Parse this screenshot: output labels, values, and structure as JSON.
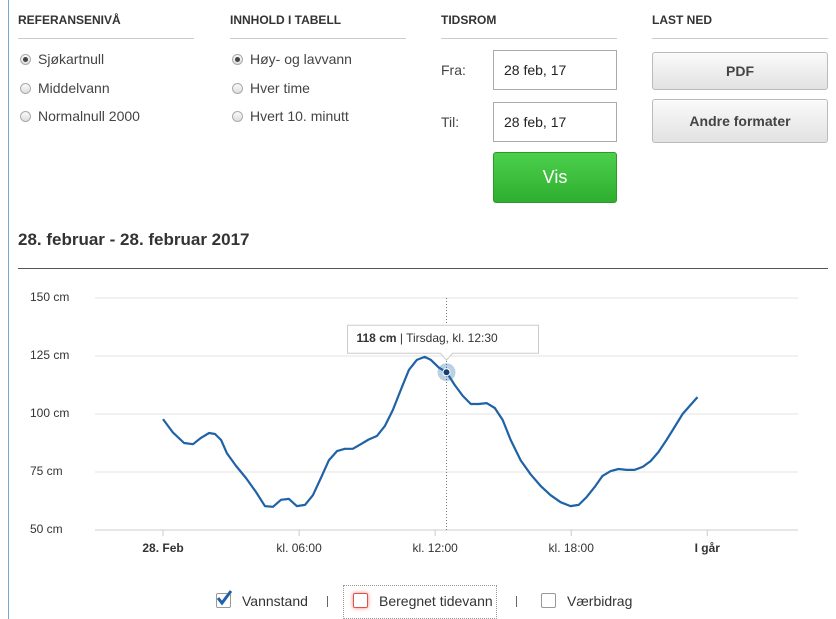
{
  "form": {
    "reference": {
      "title": "REFERANSENIVÅ",
      "options": [
        {
          "label": "Sjøkartnull",
          "selected": true
        },
        {
          "label": "Middelvann",
          "selected": false
        },
        {
          "label": "Normalnull 2000",
          "selected": false
        }
      ]
    },
    "content": {
      "title": "INNHOLD I TABELL",
      "options": [
        {
          "label": "Høy- og lavvann",
          "selected": true
        },
        {
          "label": "Hver time",
          "selected": false
        },
        {
          "label": "Hvert 10. minutt",
          "selected": false
        }
      ]
    },
    "period": {
      "title": "TIDSROM",
      "from_label": "Fra:",
      "from_value": "28 feb, 17",
      "to_label": "Til:",
      "to_value": "28 feb, 17",
      "submit": "Vis"
    },
    "download": {
      "title": "LAST NED",
      "buttons": [
        "PDF",
        "Andre formater"
      ]
    }
  },
  "heading": "28. februar - 28. februar 2017",
  "chart_data": {
    "type": "line",
    "x": [
      0,
      0.44,
      0.93,
      1.32,
      1.67,
      2.03,
      2.29,
      2.56,
      2.82,
      3.22,
      3.66,
      4.1,
      4.49,
      4.85,
      5.2,
      5.55,
      5.9,
      6.26,
      6.61,
      6.96,
      7.31,
      7.67,
      8.02,
      8.37,
      8.72,
      9.07,
      9.43,
      9.78,
      10.13,
      10.48,
      10.84,
      11.19,
      11.54,
      11.81,
      12.16,
      12.5,
      12.86,
      13.22,
      13.57,
      13.92,
      14.27,
      14.63,
      14.98,
      15.33,
      15.77,
      16.21,
      16.65,
      17.09,
      17.53,
      17.97,
      18.33,
      18.68,
      19.03,
      19.38,
      19.74,
      20.09,
      20.44,
      20.79,
      21.15,
      21.5,
      21.85,
      22.2,
      22.56,
      22.91,
      23.26,
      23.57
    ],
    "series": [
      {
        "name": "Vannstand",
        "color": "#1f62a6",
        "checked": true,
        "values": [
          97.8,
          92,
          87.5,
          87,
          89.7,
          91.8,
          91.4,
          88.8,
          83,
          77.6,
          72.4,
          66.4,
          60.3,
          60,
          63,
          63.4,
          60.3,
          60.8,
          65,
          72.4,
          80,
          84,
          85,
          85,
          87,
          89,
          90.5,
          94.8,
          101.7,
          110.3,
          119,
          123.3,
          124.6,
          123.3,
          120,
          118,
          112.5,
          107.8,
          104.3,
          104.3,
          104.7,
          102.6,
          97.4,
          88.8,
          80,
          74,
          69,
          65,
          62,
          60.3,
          60.8,
          64.2,
          68.5,
          73.3,
          75.4,
          76.3,
          75.9,
          75.9,
          77.2,
          79.7,
          83.6,
          88.8,
          94.4,
          100,
          103.9,
          107.3
        ]
      }
    ],
    "legend_items": [
      {
        "label": "Beregnet tidevann",
        "checked": false
      },
      {
        "label": "Værbidrag",
        "checked": false
      }
    ],
    "xlim": [
      -3,
      28
    ],
    "xticks": [
      {
        "value": 0,
        "label": "28. Feb"
      },
      {
        "value": 6,
        "label": "kl. 06:00"
      },
      {
        "value": 12,
        "label": "kl. 12:00"
      },
      {
        "value": 18,
        "label": "kl. 18:00"
      },
      {
        "value": 24,
        "label": "I går"
      }
    ],
    "ylim": [
      50,
      150
    ],
    "yticks": [
      {
        "value": 50,
        "label": "50 cm"
      },
      {
        "value": 75,
        "label": "75 cm"
      },
      {
        "value": 100,
        "label": "100 cm"
      },
      {
        "value": 125,
        "label": "125 cm"
      },
      {
        "value": 150,
        "label": "150 cm"
      }
    ],
    "grid": true,
    "tooltip": {
      "x": 12.5,
      "value": 118,
      "value_label": "118 cm",
      "detail": " | Tirsdag, kl. 12:30"
    }
  }
}
